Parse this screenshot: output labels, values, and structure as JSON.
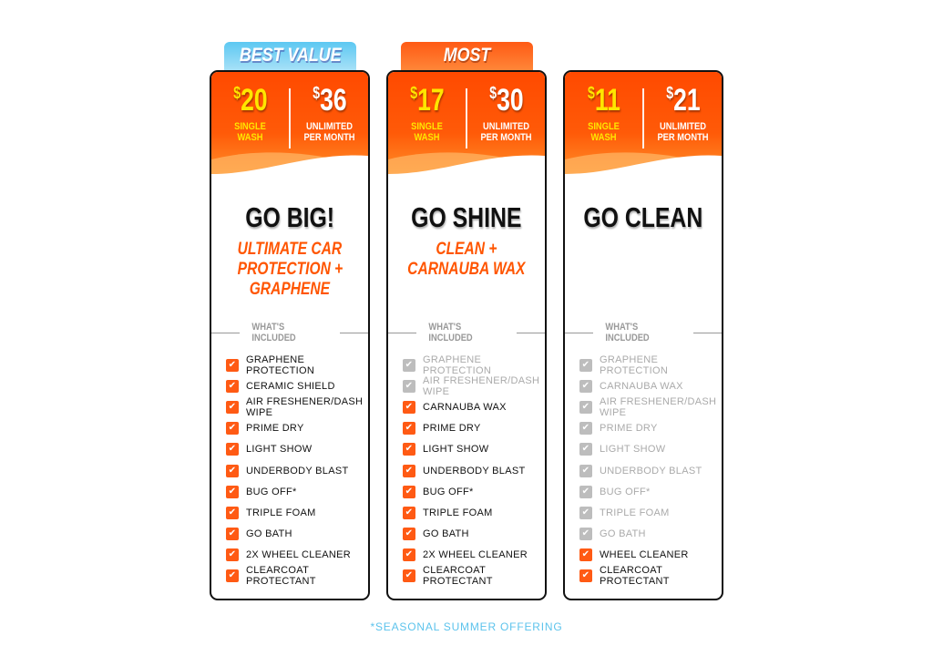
{
  "colors": {
    "accent": "#ff5a14",
    "highlight": "#ffe600",
    "badge_blue": "#5cc8f2",
    "included_off": "#bdbdbd"
  },
  "plans": [
    {
      "badge": "BEST VALUE",
      "badge_style": "blue",
      "single_price": "20",
      "single_label_1": "SINGLE",
      "single_label_2": "WASH",
      "monthly_price": "36",
      "monthly_label_1": "UNLIMITED",
      "monthly_label_2": "PER MONTH",
      "name": "GO BIG!",
      "subtitle": [
        "ULTIMATE CAR",
        "PROTECTION +",
        "GRAPHENE"
      ],
      "included_heading": "WHAT'S INCLUDED",
      "items": [
        {
          "label": "GRAPHENE PROTECTION",
          "included": true
        },
        {
          "label": "CERAMIC SHIELD",
          "included": true
        },
        {
          "label": "AIR FRESHENER/DASH WIPE",
          "included": true
        },
        {
          "label": "PRIME DRY",
          "included": true
        },
        {
          "label": "LIGHT SHOW",
          "included": true
        },
        {
          "label": "UNDERBODY BLAST",
          "included": true
        },
        {
          "label": "BUG OFF*",
          "included": true
        },
        {
          "label": "TRIPLE FOAM",
          "included": true
        },
        {
          "label": "GO BATH",
          "included": true
        },
        {
          "label": "2X WHEEL CLEANER",
          "included": true
        },
        {
          "label": "CLEARCOAT PROTECTANT",
          "included": true
        }
      ]
    },
    {
      "badge": "MOST POPULAR",
      "badge_style": "orange",
      "single_price": "17",
      "single_label_1": "SINGLE",
      "single_label_2": "WASH",
      "monthly_price": "30",
      "monthly_label_1": "UNLIMITED",
      "monthly_label_2": "PER MONTH",
      "name": "GO SHINE",
      "subtitle": [
        "CLEAN +",
        "CARNAUBA WAX"
      ],
      "included_heading": "WHAT'S INCLUDED",
      "items": [
        {
          "label": "GRAPHENE PROTECTION",
          "included": false
        },
        {
          "label": "AIR FRESHENER/DASH WIPE",
          "included": false
        },
        {
          "label": "CARNAUBA WAX",
          "included": true
        },
        {
          "label": "PRIME DRY",
          "included": true
        },
        {
          "label": "LIGHT SHOW",
          "included": true
        },
        {
          "label": "UNDERBODY BLAST",
          "included": true
        },
        {
          "label": "BUG OFF*",
          "included": true
        },
        {
          "label": "TRIPLE FOAM",
          "included": true
        },
        {
          "label": "GO BATH",
          "included": true
        },
        {
          "label": "2X WHEEL CLEANER",
          "included": true
        },
        {
          "label": "CLEARCOAT PROTECTANT",
          "included": true
        }
      ]
    },
    {
      "badge": "",
      "badge_style": "",
      "single_price": "11",
      "single_label_1": "SINGLE",
      "single_label_2": "WASH",
      "monthly_price": "21",
      "monthly_label_1": "UNLIMITED",
      "monthly_label_2": "PER MONTH",
      "name": "GO CLEAN",
      "subtitle": [],
      "included_heading": "WHAT'S INCLUDED",
      "items": [
        {
          "label": "GRAPHENE PROTECTION",
          "included": false
        },
        {
          "label": "CARNAUBA WAX",
          "included": false
        },
        {
          "label": "AIR FRESHENER/DASH WIPE",
          "included": false
        },
        {
          "label": "PRIME DRY",
          "included": false
        },
        {
          "label": "LIGHT SHOW",
          "included": false
        },
        {
          "label": "UNDERBODY BLAST",
          "included": false
        },
        {
          "label": "BUG OFF*",
          "included": false
        },
        {
          "label": "TRIPLE FOAM",
          "included": false
        },
        {
          "label": "GO BATH",
          "included": false
        },
        {
          "label": "WHEEL CLEANER",
          "included": true
        },
        {
          "label": "CLEARCOAT PROTECTANT",
          "included": true
        }
      ]
    }
  ],
  "currency": "$",
  "footnote": "*SEASONAL SUMMER OFFERING"
}
